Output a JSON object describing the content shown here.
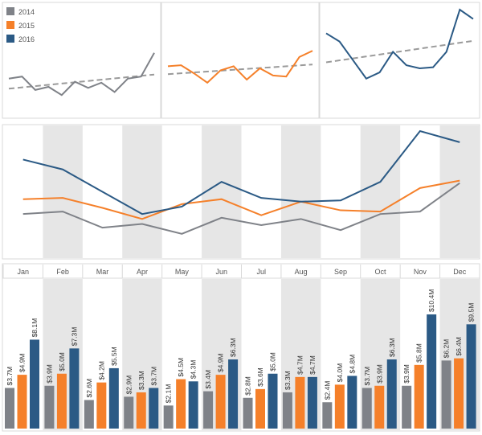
{
  "chart_data": [
    {
      "type": "line",
      "description_role": "small multiples per year with trend lines",
      "legend": {
        "placement": "top-left",
        "entries": [
          "2014",
          "2015",
          "2016"
        ]
      },
      "trend_lines": true,
      "categories": [
        "Jan",
        "Feb",
        "Mar",
        "Apr",
        "May",
        "Jun",
        "Jul",
        "Aug",
        "Sep",
        "Oct",
        "Nov",
        "Dec"
      ],
      "series": [
        {
          "name": "2014",
          "color": "#7f8288",
          "values": [
            3.7,
            3.9,
            2.6,
            2.9,
            2.1,
            3.4,
            2.8,
            3.3,
            2.4,
            3.7,
            3.9,
            6.2
          ]
        },
        {
          "name": "2015",
          "color": "#f5802a",
          "values": [
            4.9,
            5.0,
            4.2,
            3.3,
            4.5,
            4.9,
            3.6,
            4.7,
            4.0,
            3.9,
            5.8,
            6.4
          ]
        },
        {
          "name": "2016",
          "color": "#2b5a85",
          "values": [
            8.1,
            7.3,
            5.5,
            3.7,
            4.3,
            6.3,
            5.0,
            4.7,
            4.8,
            6.3,
            10.4,
            9.5
          ]
        }
      ]
    },
    {
      "type": "line",
      "categories": [
        "Jan",
        "Feb",
        "Mar",
        "Apr",
        "May",
        "Jun",
        "Jul",
        "Aug",
        "Sep",
        "Oct",
        "Nov",
        "Dec"
      ],
      "series_ref": [
        "2014",
        "2015",
        "2016"
      ]
    },
    {
      "type": "bar",
      "categories": [
        "Jan",
        "Feb",
        "Mar",
        "Apr",
        "May",
        "Jun",
        "Jul",
        "Aug",
        "Sep",
        "Oct",
        "Nov",
        "Dec"
      ],
      "labels": {
        "2014": [
          "$3.7M",
          "$3.9M",
          "$2.6M",
          "$2.9M",
          "$2.1M",
          "$3.4M",
          "$2.8M",
          "$3.3M",
          "$2.4M",
          "$3.7M",
          "$3.9M",
          "$6.2M"
        ],
        "2015": [
          "$4.9M",
          "$5.0M",
          "$4.2M",
          "$3.3M",
          "$4.5M",
          "$4.9M",
          "$3.6M",
          "$4.7M",
          "$4.0M",
          "$3.9M",
          "$5.8M",
          "$6.4M"
        ],
        "2016": [
          "$8.1M",
          "$7.3M",
          "$5.5M",
          "$3.7M",
          "$4.3M",
          "$6.3M",
          "$5.0M",
          "$4.7M",
          "$4.8M",
          "$6.3M",
          "$10.4M",
          "$9.5M"
        ]
      }
    }
  ],
  "colors": {
    "band": "#e6e6e6",
    "border": "#d9d9d9",
    "trend": "#9a9a9a"
  }
}
